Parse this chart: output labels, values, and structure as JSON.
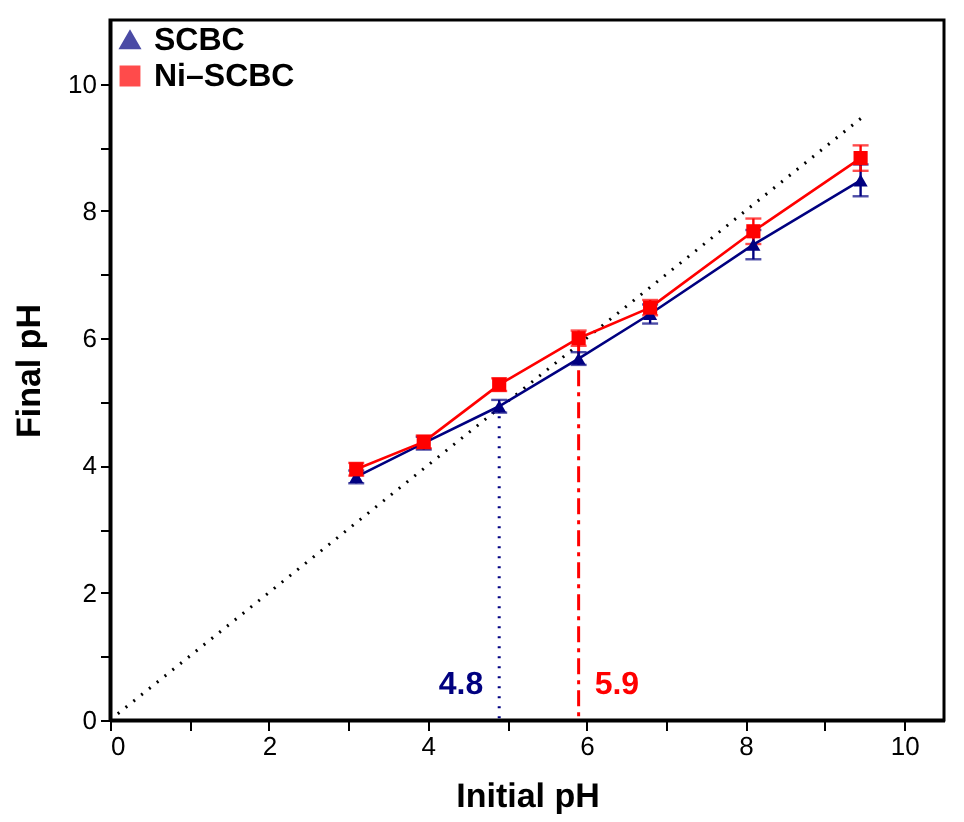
{
  "chart_data": {
    "type": "line",
    "xlabel": "Initial pH",
    "ylabel": "Final pH",
    "xlim": [
      0,
      10.5
    ],
    "ylim": [
      0,
      11
    ],
    "xticks": [
      0,
      {
        "value": 1,
        "label": null
      },
      2,
      {
        "value": 3,
        "label": null
      },
      4,
      {
        "value": 5,
        "label": null
      },
      6,
      {
        "value": 7,
        "label": null
      },
      8,
      {
        "value": 9,
        "label": null
      },
      10
    ],
    "yticks": [
      0,
      {
        "value": 1,
        "label": null
      },
      2,
      {
        "value": 3,
        "label": null
      },
      4,
      {
        "value": 5,
        "label": null
      },
      6,
      {
        "value": 7,
        "label": null
      },
      8,
      {
        "value": 9,
        "label": null
      },
      10
    ],
    "x": [
      3.1,
      3.95,
      4.9,
      5.9,
      6.8,
      8.1,
      9.45
    ],
    "series": [
      {
        "name": "SCBC",
        "color": "#000080",
        "marker": "triangle",
        "values": [
          3.82,
          4.35,
          4.93,
          5.68,
          6.38,
          7.47,
          8.48
        ],
        "errors": [
          0.1,
          0.1,
          0.1,
          0.1,
          0.15,
          0.23,
          0.25
        ]
      },
      {
        "name": "Ni–SCBC",
        "color": "#ff0000",
        "marker": "square",
        "values": [
          3.94,
          4.37,
          5.27,
          6.0,
          6.48,
          7.68,
          8.83
        ],
        "errors": [
          0.1,
          0.1,
          0.1,
          0.12,
          0.12,
          0.2,
          0.2
        ]
      },
      {
        "type": "line",
        "x": [
          0,
          9.5
        ],
        "values": [
          0,
          9.5
        ],
        "color": "#000000",
        "line_style": "dotted"
      },
      {
        "type": "line",
        "x": [
          4.9,
          4.9
        ],
        "values": [
          4.93,
          0
        ],
        "color": "#000080",
        "line_style": "dotted"
      },
      {
        "type": "line",
        "x": [
          5.9,
          5.9
        ],
        "values": [
          6.0,
          0
        ],
        "color": "#ff0000",
        "line_style": "dashed"
      }
    ],
    "annotations": [
      "4.8",
      "5.9"
    ],
    "legend": "top left",
    "grid": false
  }
}
